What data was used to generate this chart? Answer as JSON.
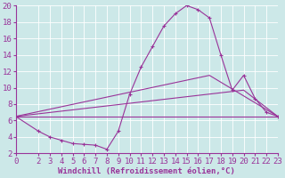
{
  "xlabel": "Windchill (Refroidissement éolien,°C)",
  "xlim": [
    0,
    23
  ],
  "ylim": [
    2,
    20
  ],
  "xticks": [
    0,
    2,
    3,
    4,
    5,
    6,
    7,
    8,
    9,
    10,
    11,
    12,
    13,
    14,
    15,
    16,
    17,
    18,
    19,
    20,
    21,
    22,
    23
  ],
  "yticks": [
    2,
    4,
    6,
    8,
    10,
    12,
    14,
    16,
    18,
    20
  ],
  "line_color": "#993399",
  "bg_color": "#cce8e8",
  "grid_color": "#b8d8d8",
  "main_curve": {
    "x": [
      0,
      2,
      3,
      4,
      5,
      6,
      7,
      8,
      9,
      10,
      11,
      12,
      13,
      14,
      15,
      16,
      17,
      18,
      19,
      20,
      21,
      22,
      23
    ],
    "y": [
      6.5,
      4.7,
      4.0,
      3.6,
      3.2,
      3.1,
      3.0,
      2.5,
      4.7,
      9.2,
      12.5,
      15.0,
      17.5,
      19.0,
      20.0,
      19.5,
      18.5,
      14.0,
      9.7,
      11.5,
      8.7,
      7.0,
      6.5
    ]
  },
  "line_flat": {
    "x": [
      0,
      23
    ],
    "y": [
      6.5,
      6.5
    ]
  },
  "line_upper1": {
    "x": [
      0,
      20,
      23
    ],
    "y": [
      6.5,
      9.7,
      6.5
    ]
  },
  "line_upper2": {
    "x": [
      0,
      17,
      23
    ],
    "y": [
      6.5,
      11.5,
      6.5
    ]
  },
  "font_size_xlabel": 6.5,
  "font_size_ticks": 6.5
}
